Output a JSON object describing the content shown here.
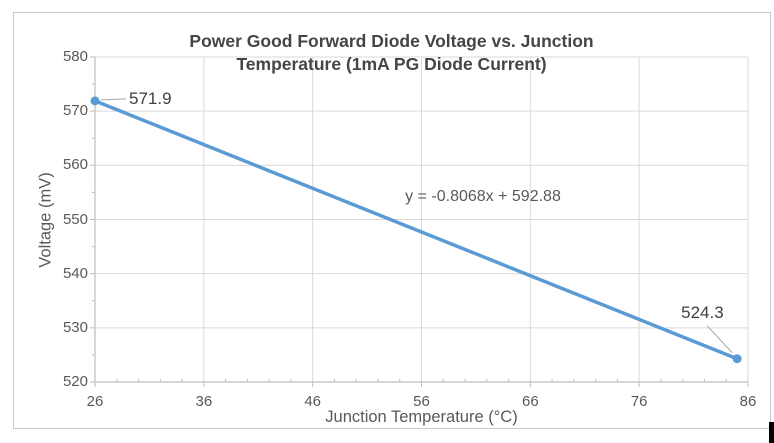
{
  "chart_data": {
    "type": "line",
    "title": "Power Good Forward Diode Voltage vs. Junction Temperature (1mA PG Diode Current)",
    "title_lines": [
      "Power Good Forward Diode Voltage vs. Junction",
      "Temperature (1mA PG Diode Current)"
    ],
    "xlabel": "Junction Temperature (°C)",
    "ylabel": "Voltage (mV)",
    "xlim": [
      26,
      86
    ],
    "ylim": [
      520,
      580
    ],
    "x_ticks": [
      "26",
      "36",
      "46",
      "56",
      "66",
      "76",
      "86"
    ],
    "y_ticks": [
      "520",
      "530",
      "540",
      "550",
      "560",
      "570",
      "580"
    ],
    "x_minor_step": 2,
    "y_minor_step": 5,
    "grid": true,
    "legend": "none",
    "trendline_equation": "y = -0.8068x + 592.88",
    "points": [
      {
        "x": 26,
        "y": 571.9,
        "label": "571.9"
      },
      {
        "x": 85,
        "y": 524.3,
        "label": "524.3"
      }
    ]
  },
  "colors": {
    "series_line": "#5B9BD5",
    "marker_fill": "#5B9BD5",
    "grid_line": "#D9D9D9",
    "axis_line": "#BFBFBF",
    "tick_text": "#595959",
    "title_text": "#454545",
    "data_label_text": "#404040",
    "leader_line": "#A6A6A6",
    "chart_border": "#C9C9C9",
    "background": "#FFFFFF",
    "cursor_bar": "#000000"
  }
}
